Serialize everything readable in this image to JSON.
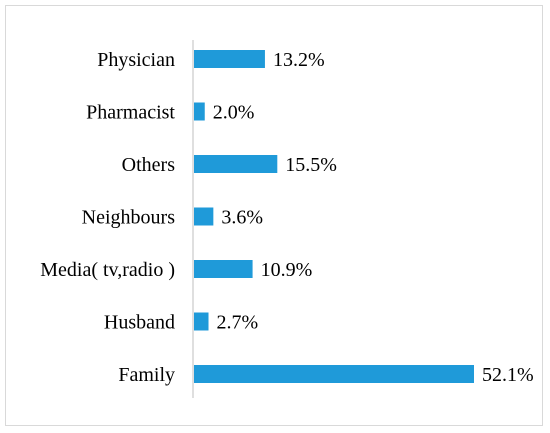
{
  "chart_data": {
    "type": "bar",
    "orientation": "horizontal",
    "categories": [
      "Physician",
      "Pharmacist",
      "Others",
      "Neighbours",
      "Media( tv,radio )",
      "Husband",
      "Family"
    ],
    "values": [
      13.2,
      2.0,
      15.5,
      3.6,
      10.9,
      2.7,
      52.1
    ],
    "value_labels": [
      "13.2%",
      "2.0%",
      "15.5%",
      "3.6%",
      "10.9%",
      "2.7%",
      "52.1%"
    ],
    "title": "",
    "xlabel": "",
    "ylabel": "",
    "xlim": [
      0,
      52.1
    ],
    "grid": false,
    "bar_color": "#1f9ad9"
  }
}
